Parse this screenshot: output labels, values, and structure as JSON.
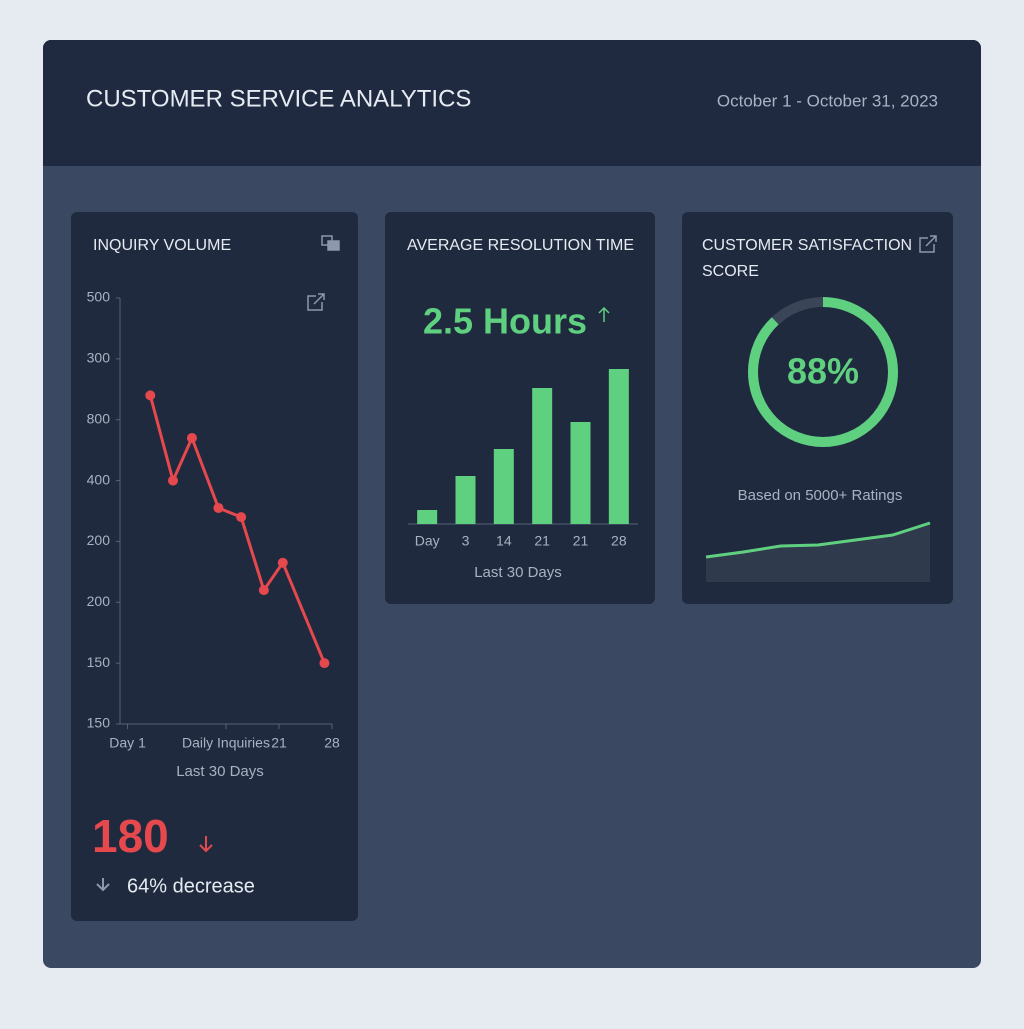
{
  "header": {
    "title": "CUSTOMER SERVICE ANALYTICS",
    "date_range": "October 1 - October 31, 2023"
  },
  "chart_data": [
    {
      "type": "line",
      "title": "INQUIRY VOLUME",
      "x_label": "Last 30 Days",
      "color": "#e5484d",
      "x": [
        4,
        7,
        9.5,
        13,
        16,
        19,
        21.5,
        27
      ],
      "values": [
        5.4,
        4.0,
        4.7,
        3.55,
        3.4,
        2.2,
        2.65,
        1.0
      ],
      "xlim": [
        0,
        28
      ],
      "xticks": [
        {
          "value": 1,
          "label": "Day 1"
        },
        {
          "value": 14,
          "label": "Daily Inquiries"
        },
        21,
        28
      ],
      "ylim": [
        0,
        7
      ],
      "yticks": [
        {
          "value": 7,
          "label": "500"
        },
        {
          "value": 6,
          "label": "300"
        },
        {
          "value": 5,
          "label": "800"
        },
        {
          "value": 4,
          "label": "400"
        },
        {
          "value": 3,
          "label": "200"
        },
        {
          "value": 2,
          "label": "200"
        },
        {
          "value": 1,
          "label": "150"
        },
        {
          "value": 0,
          "label": "150"
        }
      ],
      "total": 180,
      "change": "64% decrease"
    },
    {
      "type": "bar",
      "title": "AVERAGE RESOLUTION TIME",
      "headline": "2.5 Hours",
      "x_label": "Last 30 Days",
      "color": "#5fd07f",
      "categories": [
        "Day",
        "3",
        "14",
        "21",
        "21",
        "28"
      ],
      "values": [
        14,
        48,
        75,
        136,
        102,
        155
      ],
      "ylim": [
        0,
        160
      ]
    },
    {
      "type": "donut",
      "title": "CUSTOMER SATISFACTION SCORE",
      "value": 88,
      "value_label": "88%",
      "color": "#5fd07f",
      "note": "Based on 5000+ Ratings"
    },
    {
      "type": "area",
      "color": "#5fd07f",
      "values": [
        25,
        30,
        36,
        37,
        42,
        47,
        59
      ],
      "ylim": [
        0,
        60
      ]
    }
  ]
}
